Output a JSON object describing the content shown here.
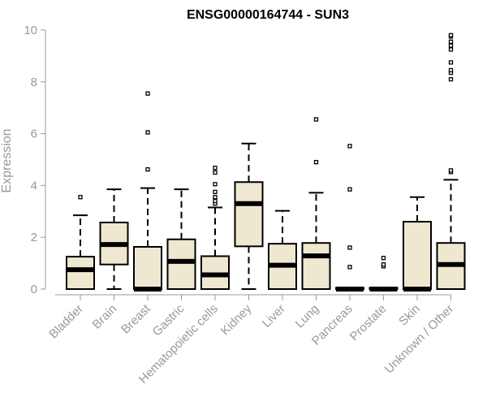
{
  "chart_data": {
    "type": "boxplot",
    "title": "ENSG00000164744 - SUN3",
    "xlabel": "",
    "ylabel": "Expression",
    "ylim": [
      0,
      10
    ],
    "yticks": [
      "0",
      "2",
      "4",
      "6",
      "8",
      "10"
    ],
    "box_fill": "#efe8d0",
    "box_stroke": "#000000",
    "axis_color": "#999999",
    "grid": false,
    "categories": [
      "Bladder",
      "Brain",
      "Breast",
      "Gastric",
      "Hematopoietic cells",
      "Kidney",
      "Liver",
      "Lung",
      "Pancreas",
      "Prostate",
      "Skin",
      "Unknown / Other"
    ],
    "boxes": [
      {
        "min": 0,
        "q1": 0,
        "median": 0.75,
        "q3": 1.25,
        "max": 2.85,
        "outliers": [
          3.55
        ]
      },
      {
        "min": 0,
        "q1": 0.95,
        "median": 1.72,
        "q3": 2.57,
        "max": 3.85,
        "outliers": []
      },
      {
        "min": 0,
        "q1": 0,
        "median": 0,
        "q3": 1.63,
        "max": 3.9,
        "outliers": [
          4.62,
          6.05,
          7.55
        ]
      },
      {
        "min": 0,
        "q1": 0,
        "median": 1.07,
        "q3": 1.92,
        "max": 3.85,
        "outliers": []
      },
      {
        "min": 0,
        "q1": 0,
        "median": 0.55,
        "q3": 1.27,
        "max": 3.15,
        "outliers": [
          3.3,
          3.4,
          3.55,
          3.75,
          4.05,
          4.5,
          4.68
        ]
      },
      {
        "min": 0,
        "q1": 1.65,
        "median": 3.3,
        "q3": 4.13,
        "max": 5.62,
        "outliers": []
      },
      {
        "min": 0,
        "q1": 0,
        "median": 0.92,
        "q3": 1.75,
        "max": 3.02,
        "outliers": []
      },
      {
        "min": 0,
        "q1": 0,
        "median": 1.28,
        "q3": 1.78,
        "max": 3.72,
        "outliers": [
          4.9,
          6.55
        ]
      },
      {
        "min": 0,
        "q1": 0,
        "median": 0,
        "q3": 0.05,
        "max": 0.05,
        "outliers": [
          0.85,
          1.6,
          3.85,
          5.52
        ]
      },
      {
        "min": 0,
        "q1": 0,
        "median": 0,
        "q3": 0.05,
        "max": 0.05,
        "outliers": [
          0.88,
          0.95,
          1.2
        ]
      },
      {
        "min": 0,
        "q1": 0,
        "median": 0,
        "q3": 2.6,
        "max": 3.55,
        "outliers": []
      },
      {
        "min": 0,
        "q1": 0,
        "median": 0.95,
        "q3": 1.78,
        "max": 4.22,
        "outliers": [
          4.52,
          4.58,
          8.1,
          8.35,
          8.45,
          8.75,
          9.25,
          9.4,
          9.55,
          9.75,
          9.8
        ]
      }
    ]
  }
}
